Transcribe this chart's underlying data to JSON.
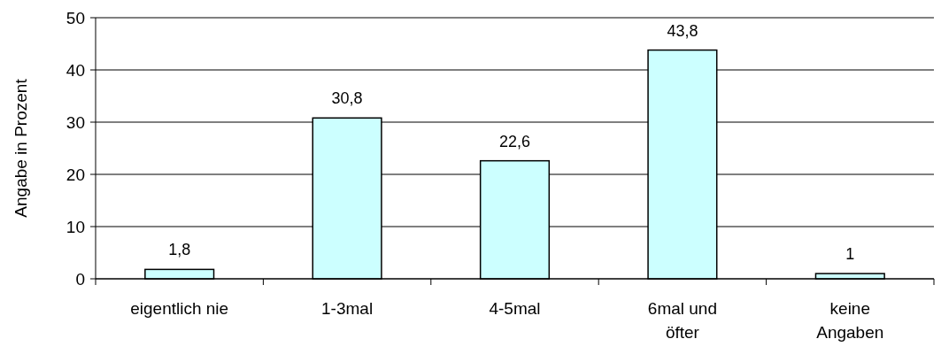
{
  "chart_data": {
    "type": "bar",
    "ylabel": "Angabe in Prozent",
    "categories": [
      "eigentlich nie",
      "1-3mal",
      "4-5mal",
      "6mal und\nöfter",
      "keine\nAngaben"
    ],
    "values": [
      1.8,
      30.8,
      22.6,
      43.8,
      1
    ],
    "color": "#ccffff",
    "ylim": [
      0,
      50
    ],
    "yticks": [
      0,
      10,
      20,
      30,
      40,
      50
    ],
    "grid": "y",
    "value_labels": [
      "1,8",
      "30,8",
      "22,6",
      "43,8",
      "1"
    ]
  }
}
